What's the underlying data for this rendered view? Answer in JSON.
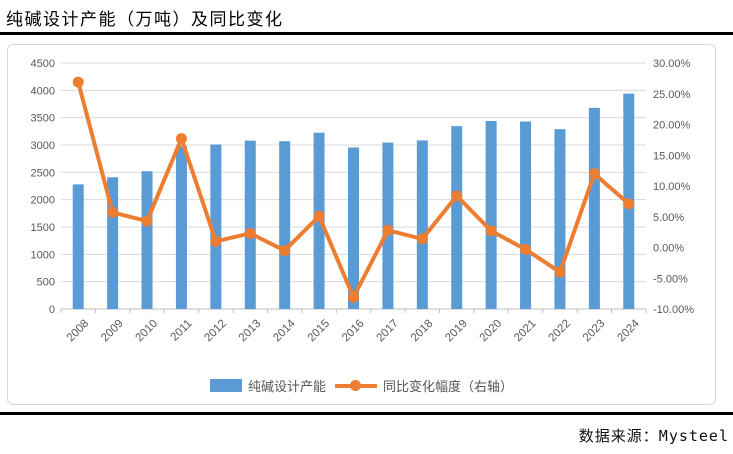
{
  "title": "纯碱设计产能（万吨）及同比变化",
  "source": "数据来源：Mysteel",
  "chart_data": {
    "type": "bar+line",
    "title": "纯碱设计产能（万吨）及同比变化",
    "categories": [
      "2008",
      "2009",
      "2010",
      "2011",
      "2012",
      "2013",
      "2014",
      "2015",
      "2016",
      "2017",
      "2018",
      "2019",
      "2020",
      "2021",
      "2022",
      "2023",
      "2024"
    ],
    "series": [
      {
        "name": "纯碱设计产能",
        "type": "bar",
        "axis": "left",
        "color": "#5B9BD5",
        "values": [
          2280,
          2410,
          2520,
          2980,
          3010,
          3080,
          3070,
          3225,
          2955,
          3045,
          3085,
          3345,
          3440,
          3430,
          3290,
          3680,
          3940
        ]
      },
      {
        "name": "同比变化幅度（右轴）",
        "type": "line",
        "axis": "right",
        "color": "#ED7D31",
        "values": [
          26.9,
          5.7,
          4.3,
          17.7,
          1.0,
          2.3,
          -0.5,
          5.1,
          -8.1,
          2.8,
          1.4,
          8.4,
          2.7,
          -0.3,
          -4.0,
          12.0,
          7.1
        ]
      }
    ],
    "left_axis": {
      "min": 0,
      "max": 4500,
      "step": 500,
      "ticks": [
        "0",
        "500",
        "1000",
        "1500",
        "2000",
        "2500",
        "3000",
        "3500",
        "4000",
        "4500"
      ]
    },
    "right_axis": {
      "min": -10,
      "max": 30,
      "step": 5,
      "format": "percent",
      "ticks": [
        "-10.00%",
        "-5.00%",
        "0.00%",
        "5.00%",
        "10.00%",
        "15.00%",
        "20.00%",
        "25.00%",
        "30.00%"
      ]
    },
    "grid": true,
    "legend_position": "bottom",
    "colors": {
      "grid": "#D9D9D9",
      "axis_line": "#BFBFBF",
      "axis_text": "#595959"
    }
  }
}
